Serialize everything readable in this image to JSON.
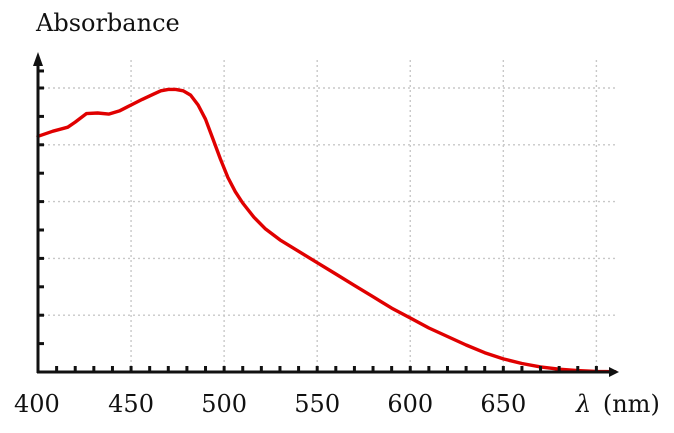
{
  "chart_data": {
    "type": "line",
    "title": "",
    "ylabel": "Absorbance",
    "xlabel": "λ (nm)",
    "xlabel_symbol": "λ",
    "xlabel_unit": "(nm)",
    "xlim": [
      400,
      710
    ],
    "ylim": [
      0,
      1.0
    ],
    "x_ticks": [
      400,
      450,
      500,
      550,
      600,
      650
    ],
    "x_tick_labels": [
      "400",
      "450",
      "500",
      "550",
      "600",
      "650"
    ],
    "y_tick_labels_shown": false,
    "grid": true,
    "legend": "none",
    "series": [
      {
        "color": "#e00000",
        "x": [
          400,
          408,
          416,
          420,
          426,
          432,
          438,
          444,
          450,
          456,
          462,
          466,
          470,
          474,
          478,
          482,
          486,
          490,
          494,
          498,
          502,
          506,
          510,
          516,
          522,
          530,
          540,
          550,
          560,
          570,
          580,
          590,
          600,
          610,
          620,
          630,
          640,
          650,
          660,
          670,
          680,
          690,
          700,
          710
        ],
        "y": [
          0.83,
          0.848,
          0.862,
          0.88,
          0.91,
          0.912,
          0.908,
          0.92,
          0.94,
          0.96,
          0.978,
          0.99,
          0.995,
          0.995,
          0.99,
          0.975,
          0.94,
          0.89,
          0.82,
          0.75,
          0.685,
          0.635,
          0.595,
          0.545,
          0.505,
          0.465,
          0.425,
          0.385,
          0.345,
          0.305,
          0.265,
          0.225,
          0.19,
          0.155,
          0.125,
          0.095,
          0.068,
          0.046,
          0.03,
          0.018,
          0.01,
          0.005,
          0.002,
          0.001
        ]
      }
    ]
  }
}
